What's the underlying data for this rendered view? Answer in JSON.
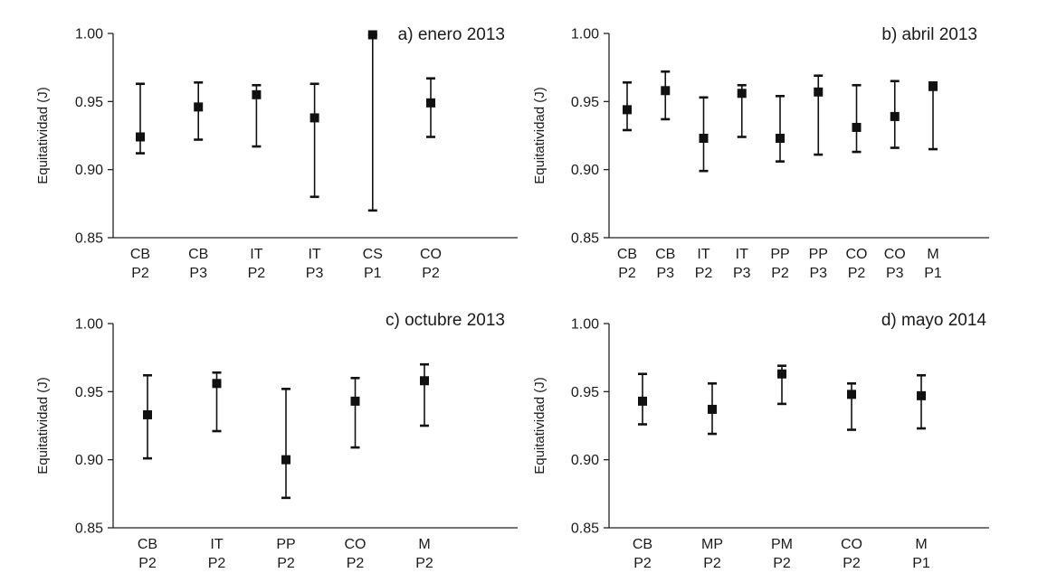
{
  "chart_data": [
    {
      "type": "errorbar",
      "title": "a) enero 2013",
      "ylabel": "Equitatividad (J)",
      "ylim": [
        0.85,
        1.0
      ],
      "yticks": [
        "0.85",
        "0.90",
        "0.95",
        "1.00"
      ],
      "categories": [
        [
          "CB",
          "P2"
        ],
        [
          "CB",
          "P3"
        ],
        [
          "IT",
          "P2"
        ],
        [
          "IT",
          "P3"
        ],
        [
          "CS",
          "P1"
        ],
        [
          "CO",
          "P2"
        ]
      ],
      "values": [
        0.924,
        0.946,
        0.955,
        0.938,
        0.999,
        0.949
      ],
      "upper": [
        0.963,
        0.964,
        0.962,
        0.963,
        0.999,
        0.967
      ],
      "lower": [
        0.912,
        0.922,
        0.917,
        0.88,
        0.87,
        0.924
      ]
    },
    {
      "type": "errorbar",
      "title": "b) abril 2013",
      "ylabel": "Equitatividad (J)",
      "ylim": [
        0.85,
        1.0
      ],
      "yticks": [
        "0.85",
        "0.90",
        "0.95",
        "1.00"
      ],
      "categories": [
        [
          "CB",
          "P2"
        ],
        [
          "CB",
          "P3"
        ],
        [
          "IT",
          "P2"
        ],
        [
          "IT",
          "P3"
        ],
        [
          "PP",
          "P2"
        ],
        [
          "PP",
          "P3"
        ],
        [
          "CO",
          "P2"
        ],
        [
          "CO",
          "P3"
        ],
        [
          "M",
          "P1"
        ]
      ],
      "values": [
        0.944,
        0.958,
        0.923,
        0.956,
        0.923,
        0.957,
        0.931,
        0.939,
        0.961
      ],
      "upper": [
        0.964,
        0.972,
        0.953,
        0.962,
        0.954,
        0.969,
        0.962,
        0.965,
        0.964
      ],
      "lower": [
        0.929,
        0.937,
        0.899,
        0.924,
        0.906,
        0.911,
        0.913,
        0.916,
        0.915
      ]
    },
    {
      "type": "errorbar",
      "title": "c) octubre 2013",
      "ylabel": "Equitatividad (J)",
      "ylim": [
        0.85,
        1.0
      ],
      "yticks": [
        "0.85",
        "0.90",
        "0.95",
        "1.00"
      ],
      "categories": [
        [
          "CB",
          "P2"
        ],
        [
          "IT",
          "P2"
        ],
        [
          "PP",
          "P2"
        ],
        [
          "CO",
          "P2"
        ],
        [
          "M",
          "P2"
        ]
      ],
      "values": [
        0.933,
        0.956,
        0.9,
        0.943,
        0.958
      ],
      "upper": [
        0.962,
        0.964,
        0.952,
        0.96,
        0.97
      ],
      "lower": [
        0.901,
        0.921,
        0.872,
        0.909,
        0.925
      ]
    },
    {
      "type": "errorbar",
      "title": "d) mayo 2014",
      "ylabel": "Equitatividad (J)",
      "ylim": [
        0.85,
        1.0
      ],
      "yticks": [
        "0.85",
        "0.90",
        "0.95",
        "1.00"
      ],
      "categories": [
        [
          "CB",
          "P2"
        ],
        [
          "MP",
          "P2"
        ],
        [
          "PM",
          "P2"
        ],
        [
          "CO",
          "P2"
        ],
        [
          "M",
          "P1"
        ]
      ],
      "values": [
        0.943,
        0.937,
        0.963,
        0.948,
        0.947
      ],
      "upper": [
        0.963,
        0.956,
        0.969,
        0.956,
        0.962
      ],
      "lower": [
        0.926,
        0.919,
        0.941,
        0.922,
        0.923
      ]
    }
  ]
}
